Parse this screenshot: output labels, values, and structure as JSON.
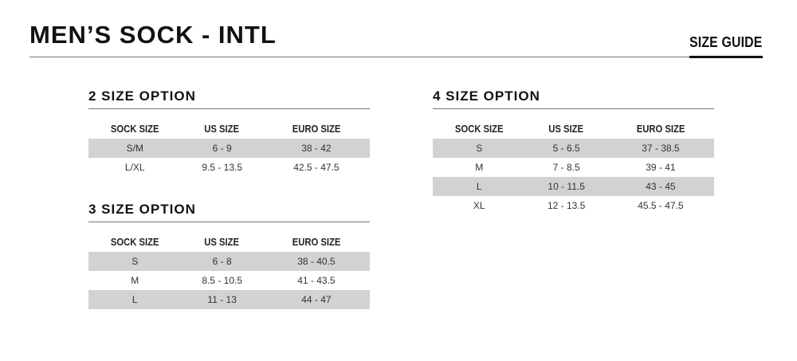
{
  "header": {
    "title": "MEN’S SOCK - INTL",
    "guide_label": "SIZE GUIDE"
  },
  "columns": [
    "SOCK SIZE",
    "US SIZE",
    "EURO SIZE"
  ],
  "tables": [
    {
      "heading": "2 SIZE OPTION",
      "rows": [
        [
          "S/M",
          "6 - 9",
          "38 - 42"
        ],
        [
          "L/XL",
          "9.5 - 13.5",
          "42.5 - 47.5"
        ]
      ]
    },
    {
      "heading": "3 SIZE OPTION",
      "rows": [
        [
          "S",
          "6 - 8",
          "38 - 40.5"
        ],
        [
          "M",
          "8.5 - 10.5",
          "41 - 43.5"
        ],
        [
          "L",
          "11 - 13",
          "44 - 47"
        ]
      ]
    },
    {
      "heading": "4 SIZE OPTION",
      "rows": [
        [
          "S",
          "5 - 6.5",
          "37 - 38.5"
        ],
        [
          "M",
          "7 - 8.5",
          "39 - 41"
        ],
        [
          "L",
          "10 - 11.5",
          "43 - 45"
        ],
        [
          "XL",
          "12 - 13.5",
          "45.5 - 47.5"
        ]
      ]
    }
  ],
  "colors": {
    "row_shade": "#d2d2d2",
    "text": "#111111"
  }
}
